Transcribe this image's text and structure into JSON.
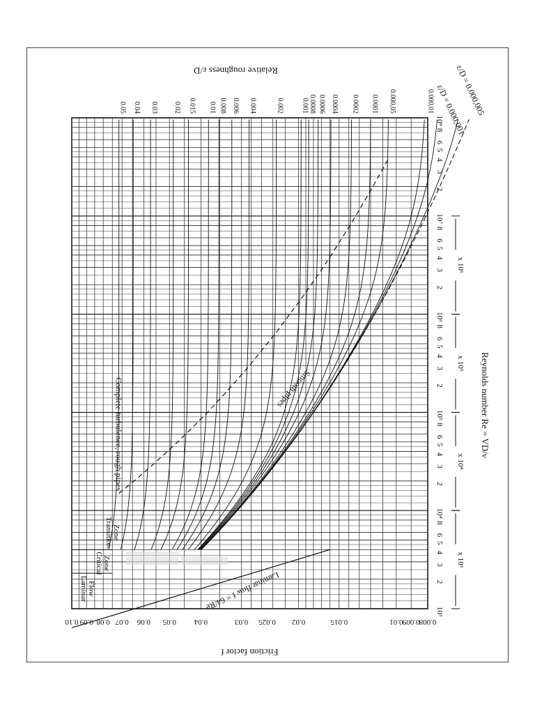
{
  "chart_data": {
    "type": "line",
    "title": "",
    "xlabel": "Reynolds number  Re = VD/ν",
    "ylabel": "Friction factor f",
    "y2label": "Relative roughness ε/D",
    "x_scale": "log",
    "y_scale": "log",
    "xlim": [
      1000,
      100000000
    ],
    "ylim": [
      0.008,
      0.1
    ],
    "grid": true,
    "y_ticks": [
      {
        "value": 0.1,
        "label": "0.10"
      },
      {
        "value": 0.09,
        "label": "0.09"
      },
      {
        "value": 0.08,
        "label": "0.08"
      },
      {
        "value": 0.07,
        "label": "0.07"
      },
      {
        "value": 0.06,
        "label": "0.06"
      },
      {
        "value": 0.05,
        "label": "0.05"
      },
      {
        "value": 0.04,
        "label": "0.04"
      },
      {
        "value": 0.03,
        "label": "0.03"
      },
      {
        "value": 0.025,
        "label": "0.025"
      },
      {
        "value": 0.02,
        "label": "0.02"
      },
      {
        "value": 0.015,
        "label": "0.015"
      },
      {
        "value": 0.01,
        "label": "0.01"
      },
      {
        "value": 0.009,
        "label": "0.009"
      },
      {
        "value": 0.008,
        "label": "0.008"
      }
    ],
    "x_decades": [
      {
        "value": 1000,
        "label": "10³"
      },
      {
        "value": 10000,
        "label": "10⁴"
      },
      {
        "value": 100000,
        "label": "10⁵"
      },
      {
        "value": 1000000,
        "label": "10⁶"
      },
      {
        "value": 10000000,
        "label": "10⁷"
      },
      {
        "value": 100000000,
        "label": "10⁸"
      }
    ],
    "x_minor_labels": [
      "2",
      "3",
      "4",
      "5",
      "6",
      "8"
    ],
    "x_multipliers": [
      "x 10³",
      "x 10⁴",
      "x 10⁵",
      "x 10⁶"
    ],
    "roughness_labels": [
      {
        "value": 0.05,
        "label": "0.05"
      },
      {
        "value": 0.04,
        "label": "0.04"
      },
      {
        "value": 0.03,
        "label": "0.03"
      },
      {
        "value": 0.02,
        "label": "0.02"
      },
      {
        "value": 0.015,
        "label": "0.015"
      },
      {
        "value": 0.01,
        "label": "0.01"
      },
      {
        "value": 0.008,
        "label": "0.008"
      },
      {
        "value": 0.006,
        "label": "0.006"
      },
      {
        "value": 0.004,
        "label": "0.004"
      },
      {
        "value": 0.002,
        "label": "0.002"
      },
      {
        "value": 0.001,
        "label": "0.001"
      },
      {
        "value": 0.0008,
        "label": "0.0008"
      },
      {
        "value": 0.0006,
        "label": "0.0006"
      },
      {
        "value": 0.0004,
        "label": "0.0004"
      },
      {
        "value": 0.0002,
        "label": "0.0002"
      },
      {
        "value": 0.0001,
        "label": "0.0001"
      },
      {
        "value": 5e-05,
        "label": "0.000,05"
      },
      {
        "value": 1e-05,
        "label": "0.000,01"
      }
    ],
    "series": [
      {
        "name": "Laminar flow  f = 64/Re",
        "x": [
          1000,
          4000
        ],
        "y": [
          0.064,
          0.016
        ]
      },
      {
        "name": "Smooth pipes",
        "x": [
          4000,
          10000,
          100000,
          1000000,
          10000000,
          100000000
        ],
        "y": [
          0.0399,
          0.0309,
          0.018,
          0.0116,
          0.0081,
          0.0059
        ]
      },
      {
        "x": [
          100000000
        ],
        "y": [
          0.0094
        ],
        "label": "ε/D = 0.000,001"
      },
      {
        "x": [
          100000000
        ],
        "y": [
          0.0108
        ],
        "label": "ε/D = 0.000,005"
      }
    ],
    "annotations": {
      "laminar": "Laminar\nFlow",
      "critical": "Critical\nZone",
      "transition": "Transition\nZone",
      "complete": "Complete turbulence, rough pipes",
      "laminar_flow": "Laminar flow  f = 64/Re",
      "smooth": "Smooth pipes",
      "eps1": "ε/D = 0.000,001",
      "eps5": "ε/D = 0.000,005"
    }
  }
}
